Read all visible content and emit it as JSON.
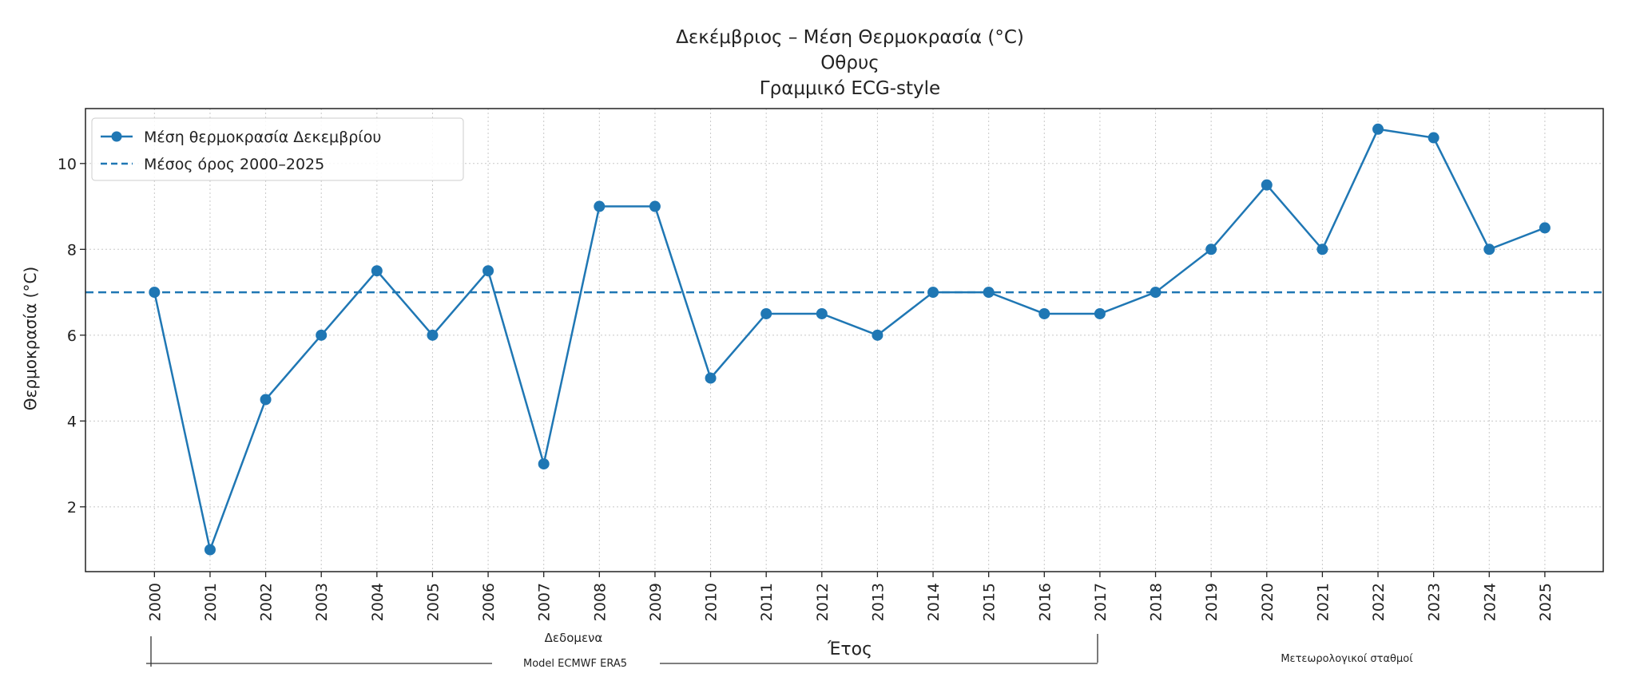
{
  "chart_data": {
    "type": "line",
    "title": [
      "Δεκέμβριος – Μέση Θερμοκρασία (°C)",
      "Οθρυς",
      "Γραμμικό ECG-style"
    ],
    "xlabel": "Έτος",
    "ylabel": "Θερμοκρασία (°C)",
    "x": [
      2000,
      2001,
      2002,
      2003,
      2004,
      2005,
      2006,
      2007,
      2008,
      2009,
      2010,
      2011,
      2012,
      2013,
      2014,
      2015,
      2016,
      2017,
      2018,
      2019,
      2020,
      2021,
      2022,
      2023,
      2024,
      2025
    ],
    "series": [
      {
        "name": "Μέση θερμοκρασία Δεκεμβρίου",
        "style": "line-marker",
        "values": [
          7,
          1,
          4.5,
          6,
          7.5,
          6,
          7.5,
          3,
          9,
          9,
          5,
          6.5,
          6.5,
          6,
          7,
          7,
          6.5,
          6.5,
          7,
          8,
          9.5,
          8,
          10.8,
          10.6,
          8,
          8.5
        ]
      },
      {
        "name": "Μέσος όρος 2000–2025",
        "style": "dashed",
        "value": 7
      }
    ],
    "yticks": [
      2,
      4,
      6,
      8,
      10
    ],
    "xlim": [
      1998.76,
      2026.05
    ],
    "ylim": [
      0.49,
      11.28
    ],
    "grid": true,
    "legend": "top-left",
    "color": "#1f77b4",
    "annotations": {
      "data_label": "Δεδομενα",
      "model_label": "Model ECMWF ERA5",
      "stations_label": "Μετεωρολογικοί σταθμοί",
      "model_range": [
        2000,
        2017
      ]
    }
  }
}
